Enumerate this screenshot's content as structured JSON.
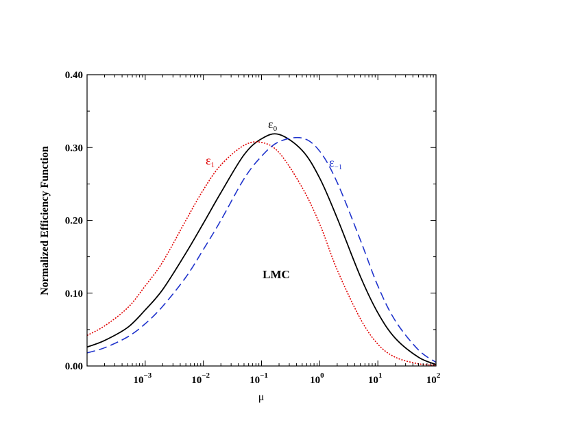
{
  "chart_data": {
    "type": "line",
    "xlabel": "μ",
    "ylabel": "Normalized Efficiency Function",
    "xscale": "log",
    "xlim": [
      0.0001,
      100
    ],
    "ylim": [
      0.0,
      0.4
    ],
    "x_ticks": [
      {
        "value": 0.001,
        "base": "10",
        "exp": "−3"
      },
      {
        "value": 0.01,
        "base": "10",
        "exp": "−2"
      },
      {
        "value": 0.1,
        "base": "10",
        "exp": "−1"
      },
      {
        "value": 1,
        "base": "10",
        "exp": "0"
      },
      {
        "value": 10,
        "base": "10",
        "exp": "1"
      },
      {
        "value": 100,
        "base": "10",
        "exp": "2"
      }
    ],
    "y_ticks": [
      {
        "value": 0.0,
        "label": "0.00"
      },
      {
        "value": 0.1,
        "label": "0.10"
      },
      {
        "value": 0.2,
        "label": "0.20"
      },
      {
        "value": 0.3,
        "label": "0.30"
      },
      {
        "value": 0.4,
        "label": "0.40"
      }
    ],
    "annotation": "LMC",
    "series": [
      {
        "label_base": "ε",
        "label_sub": "0",
        "color": "#000000",
        "style": "solid",
        "x": [
          0.0001,
          0.0002,
          0.0005,
          0.001,
          0.002,
          0.005,
          0.01,
          0.02,
          0.05,
          0.1,
          0.2,
          0.5,
          1,
          2,
          5,
          10,
          20,
          50,
          100
        ],
        "y": [
          0.026,
          0.035,
          0.053,
          0.077,
          0.105,
          0.155,
          0.196,
          0.238,
          0.29,
          0.312,
          0.318,
          0.296,
          0.258,
          0.203,
          0.123,
          0.073,
          0.038,
          0.012,
          0.002
        ]
      },
      {
        "label_base": "ε",
        "label_sub": "1",
        "color": "#e00000",
        "style": "dotted",
        "x": [
          0.0001,
          0.0002,
          0.0005,
          0.001,
          0.002,
          0.005,
          0.01,
          0.02,
          0.05,
          0.1,
          0.2,
          0.5,
          1,
          2,
          5,
          10,
          20,
          50,
          100
        ],
        "y": [
          0.042,
          0.055,
          0.08,
          0.11,
          0.143,
          0.2,
          0.242,
          0.276,
          0.303,
          0.307,
          0.293,
          0.245,
          0.195,
          0.132,
          0.065,
          0.03,
          0.012,
          0.003,
          0.001
        ]
      },
      {
        "label_base": "ε",
        "label_sub": "−1",
        "color": "#1f33cc",
        "style": "dashed",
        "x": [
          0.0001,
          0.0002,
          0.0005,
          0.001,
          0.002,
          0.005,
          0.01,
          0.02,
          0.05,
          0.1,
          0.2,
          0.5,
          1,
          2,
          5,
          10,
          20,
          50,
          100
        ],
        "y": [
          0.018,
          0.025,
          0.04,
          0.058,
          0.082,
          0.122,
          0.16,
          0.2,
          0.257,
          0.288,
          0.308,
          0.313,
          0.295,
          0.252,
          0.173,
          0.11,
          0.062,
          0.022,
          0.005
        ]
      }
    ]
  }
}
